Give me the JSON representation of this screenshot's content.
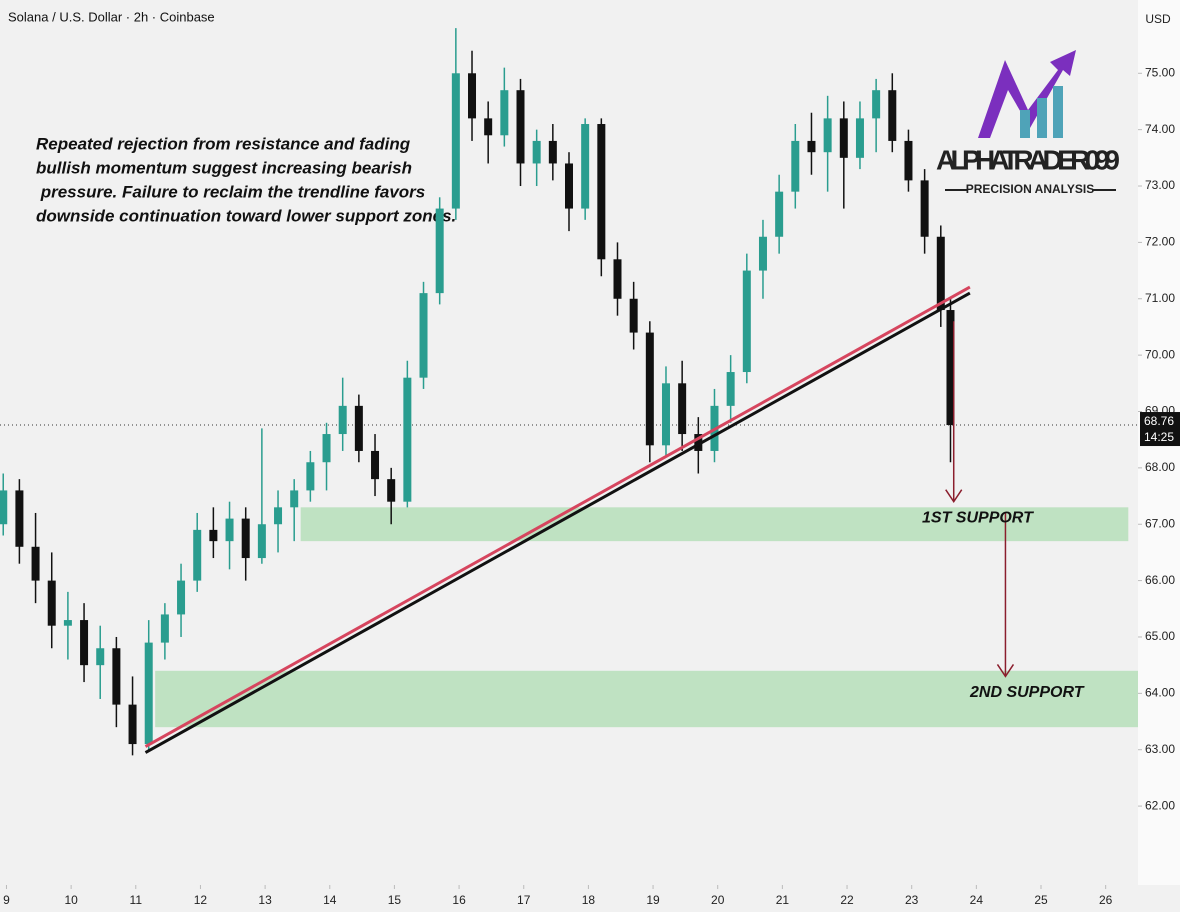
{
  "chart_data": {
    "type": "candlestick",
    "title": "Solana / U.S. Dollar · 2h · Coinbase",
    "y_axis_label": "USD",
    "annotation": [
      "Repeated rejection from resistance and fading",
      "bullish momentum suggest increasing bearish",
      " pressure. Failure to reclaim the trendline favors",
      "downside continuation toward lower support zones."
    ],
    "brand": {
      "name": "ALPHATRADER099",
      "tagline": "PRECISION ANALYSIS"
    },
    "up_color": "#2a9d8f",
    "down_color": "#111111",
    "xlim": [
      8.9,
      26.5
    ],
    "xticks": [
      9,
      10,
      11,
      12,
      13,
      14,
      15,
      16,
      17,
      18,
      19,
      20,
      21,
      22,
      23,
      24,
      25,
      26
    ],
    "ylim": [
      60.6,
      76.3
    ],
    "yticks": [
      {
        "value": 62,
        "label": "62.00"
      },
      {
        "value": 63,
        "label": "63.00"
      },
      {
        "value": 64,
        "label": "64.00"
      },
      {
        "value": 65,
        "label": "65.00"
      },
      {
        "value": 66,
        "label": "66.00"
      },
      {
        "value": 67,
        "label": "67.00"
      },
      {
        "value": 68,
        "label": "68.00"
      },
      {
        "value": 69,
        "label": "69.00"
      },
      {
        "value": 70,
        "label": "70.00"
      },
      {
        "value": 71,
        "label": "71.00"
      },
      {
        "value": 72,
        "label": "72.00"
      },
      {
        "value": 73,
        "label": "73.00"
      },
      {
        "value": 74,
        "label": "74.00"
      },
      {
        "value": 75,
        "label": "75.00"
      }
    ],
    "last_price": {
      "value": 68.76,
      "label": "68.76",
      "countdown": "14:25"
    },
    "candles": [
      {
        "x": 8.95,
        "open": 67.0,
        "high": 67.9,
        "low": 66.8,
        "close": 67.6
      },
      {
        "x": 9.2,
        "open": 67.6,
        "high": 67.8,
        "low": 66.3,
        "close": 66.6
      },
      {
        "x": 9.45,
        "open": 66.6,
        "high": 67.2,
        "low": 65.6,
        "close": 66.0
      },
      {
        "x": 9.7,
        "open": 66.0,
        "high": 66.5,
        "low": 64.8,
        "close": 65.2
      },
      {
        "x": 9.95,
        "open": 65.2,
        "high": 65.8,
        "low": 64.6,
        "close": 65.3
      },
      {
        "x": 10.2,
        "open": 65.3,
        "high": 65.6,
        "low": 64.2,
        "close": 64.5
      },
      {
        "x": 10.45,
        "open": 64.5,
        "high": 65.2,
        "low": 63.9,
        "close": 64.8
      },
      {
        "x": 10.7,
        "open": 64.8,
        "high": 65.0,
        "low": 63.4,
        "close": 63.8
      },
      {
        "x": 10.95,
        "open": 63.8,
        "high": 64.3,
        "low": 62.9,
        "close": 63.1
      },
      {
        "x": 11.2,
        "open": 63.1,
        "high": 65.3,
        "low": 63.0,
        "close": 64.9
      },
      {
        "x": 11.45,
        "open": 64.9,
        "high": 65.6,
        "low": 64.6,
        "close": 65.4
      },
      {
        "x": 11.7,
        "open": 65.4,
        "high": 66.3,
        "low": 65.0,
        "close": 66.0
      },
      {
        "x": 11.95,
        "open": 66.0,
        "high": 67.2,
        "low": 65.8,
        "close": 66.9
      },
      {
        "x": 12.2,
        "open": 66.9,
        "high": 67.3,
        "low": 66.4,
        "close": 66.7
      },
      {
        "x": 12.45,
        "open": 66.7,
        "high": 67.4,
        "low": 66.2,
        "close": 67.1
      },
      {
        "x": 12.7,
        "open": 67.1,
        "high": 67.3,
        "low": 66.0,
        "close": 66.4
      },
      {
        "x": 12.95,
        "open": 66.4,
        "high": 68.7,
        "low": 66.3,
        "close": 67.0
      },
      {
        "x": 13.2,
        "open": 67.0,
        "high": 67.6,
        "low": 66.5,
        "close": 67.3
      },
      {
        "x": 13.45,
        "open": 67.3,
        "high": 67.8,
        "low": 66.7,
        "close": 67.6
      },
      {
        "x": 13.7,
        "open": 67.6,
        "high": 68.3,
        "low": 67.4,
        "close": 68.1
      },
      {
        "x": 13.95,
        "open": 68.1,
        "high": 68.8,
        "low": 67.6,
        "close": 68.6
      },
      {
        "x": 14.2,
        "open": 68.6,
        "high": 69.6,
        "low": 68.3,
        "close": 69.1
      },
      {
        "x": 14.45,
        "open": 69.1,
        "high": 69.3,
        "low": 68.1,
        "close": 68.3
      },
      {
        "x": 14.7,
        "open": 68.3,
        "high": 68.6,
        "low": 67.5,
        "close": 67.8
      },
      {
        "x": 14.95,
        "open": 67.8,
        "high": 68.0,
        "low": 67.0,
        "close": 67.4
      },
      {
        "x": 15.2,
        "open": 67.4,
        "high": 69.9,
        "low": 67.3,
        "close": 69.6
      },
      {
        "x": 15.45,
        "open": 69.6,
        "high": 71.3,
        "low": 69.4,
        "close": 71.1
      },
      {
        "x": 15.7,
        "open": 71.1,
        "high": 72.8,
        "low": 70.9,
        "close": 72.6
      },
      {
        "x": 15.95,
        "open": 72.6,
        "high": 75.8,
        "low": 72.4,
        "close": 75.0
      },
      {
        "x": 16.2,
        "open": 75.0,
        "high": 75.4,
        "low": 73.8,
        "close": 74.2
      },
      {
        "x": 16.45,
        "open": 74.2,
        "high": 74.5,
        "low": 73.4,
        "close": 73.9
      },
      {
        "x": 16.7,
        "open": 73.9,
        "high": 75.1,
        "low": 73.7,
        "close": 74.7
      },
      {
        "x": 16.95,
        "open": 74.7,
        "high": 74.9,
        "low": 73.0,
        "close": 73.4
      },
      {
        "x": 17.2,
        "open": 73.4,
        "high": 74.0,
        "low": 73.0,
        "close": 73.8
      },
      {
        "x": 17.45,
        "open": 73.8,
        "high": 74.1,
        "low": 73.1,
        "close": 73.4
      },
      {
        "x": 17.7,
        "open": 73.4,
        "high": 73.6,
        "low": 72.2,
        "close": 72.6
      },
      {
        "x": 17.95,
        "open": 72.6,
        "high": 74.2,
        "low": 72.4,
        "close": 74.1
      },
      {
        "x": 18.2,
        "open": 74.1,
        "high": 74.2,
        "low": 71.4,
        "close": 71.7
      },
      {
        "x": 18.45,
        "open": 71.7,
        "high": 72.0,
        "low": 70.7,
        "close": 71.0
      },
      {
        "x": 18.7,
        "open": 71.0,
        "high": 71.3,
        "low": 70.1,
        "close": 70.4
      },
      {
        "x": 18.95,
        "open": 70.4,
        "high": 70.6,
        "low": 68.1,
        "close": 68.4
      },
      {
        "x": 19.2,
        "open": 68.4,
        "high": 69.8,
        "low": 68.2,
        "close": 69.5
      },
      {
        "x": 19.45,
        "open": 69.5,
        "high": 69.9,
        "low": 68.3,
        "close": 68.6
      },
      {
        "x": 19.7,
        "open": 68.6,
        "high": 68.9,
        "low": 67.9,
        "close": 68.3
      },
      {
        "x": 19.95,
        "open": 68.3,
        "high": 69.4,
        "low": 68.1,
        "close": 69.1
      },
      {
        "x": 20.2,
        "open": 69.1,
        "high": 70.0,
        "low": 68.8,
        "close": 69.7
      },
      {
        "x": 20.45,
        "open": 69.7,
        "high": 71.8,
        "low": 69.5,
        "close": 71.5
      },
      {
        "x": 20.7,
        "open": 71.5,
        "high": 72.4,
        "low": 71.0,
        "close": 72.1
      },
      {
        "x": 20.95,
        "open": 72.1,
        "high": 73.2,
        "low": 71.8,
        "close": 72.9
      },
      {
        "x": 21.2,
        "open": 72.9,
        "high": 74.1,
        "low": 72.6,
        "close": 73.8
      },
      {
        "x": 21.45,
        "open": 73.8,
        "high": 74.3,
        "low": 73.2,
        "close": 73.6
      },
      {
        "x": 21.7,
        "open": 73.6,
        "high": 74.6,
        "low": 72.9,
        "close": 74.2
      },
      {
        "x": 21.95,
        "open": 74.2,
        "high": 74.5,
        "low": 72.6,
        "close": 73.5
      },
      {
        "x": 22.2,
        "open": 73.5,
        "high": 74.5,
        "low": 73.3,
        "close": 74.2
      },
      {
        "x": 22.45,
        "open": 74.2,
        "high": 74.9,
        "low": 73.6,
        "close": 74.7
      },
      {
        "x": 22.7,
        "open": 74.7,
        "high": 75.0,
        "low": 73.6,
        "close": 73.8
      },
      {
        "x": 22.95,
        "open": 73.8,
        "high": 74.0,
        "low": 72.9,
        "close": 73.1
      },
      {
        "x": 23.2,
        "open": 73.1,
        "high": 73.3,
        "low": 71.8,
        "close": 72.1
      },
      {
        "x": 23.45,
        "open": 72.1,
        "high": 72.3,
        "low": 70.5,
        "close": 70.8
      },
      {
        "x": 23.6,
        "open": 70.8,
        "high": 71.0,
        "low": 68.1,
        "close": 68.76
      }
    ],
    "zones": [
      {
        "label": "1ST SUPPORT",
        "x0": 13.55,
        "x1": 26.35,
        "low": 66.7,
        "high": 67.3
      },
      {
        "label": "2ND SUPPORT",
        "x0": 11.3,
        "x1": 26.5,
        "low": 63.4,
        "high": 64.4
      }
    ],
    "trendline": {
      "x": [
        11.15,
        23.9
      ],
      "y": [
        62.95,
        71.1
      ]
    },
    "arrows": [
      {
        "x": 23.65,
        "from": 70.6,
        "to": 67.4
      },
      {
        "x": 24.45,
        "from": 67.2,
        "to": 64.3
      }
    ]
  }
}
